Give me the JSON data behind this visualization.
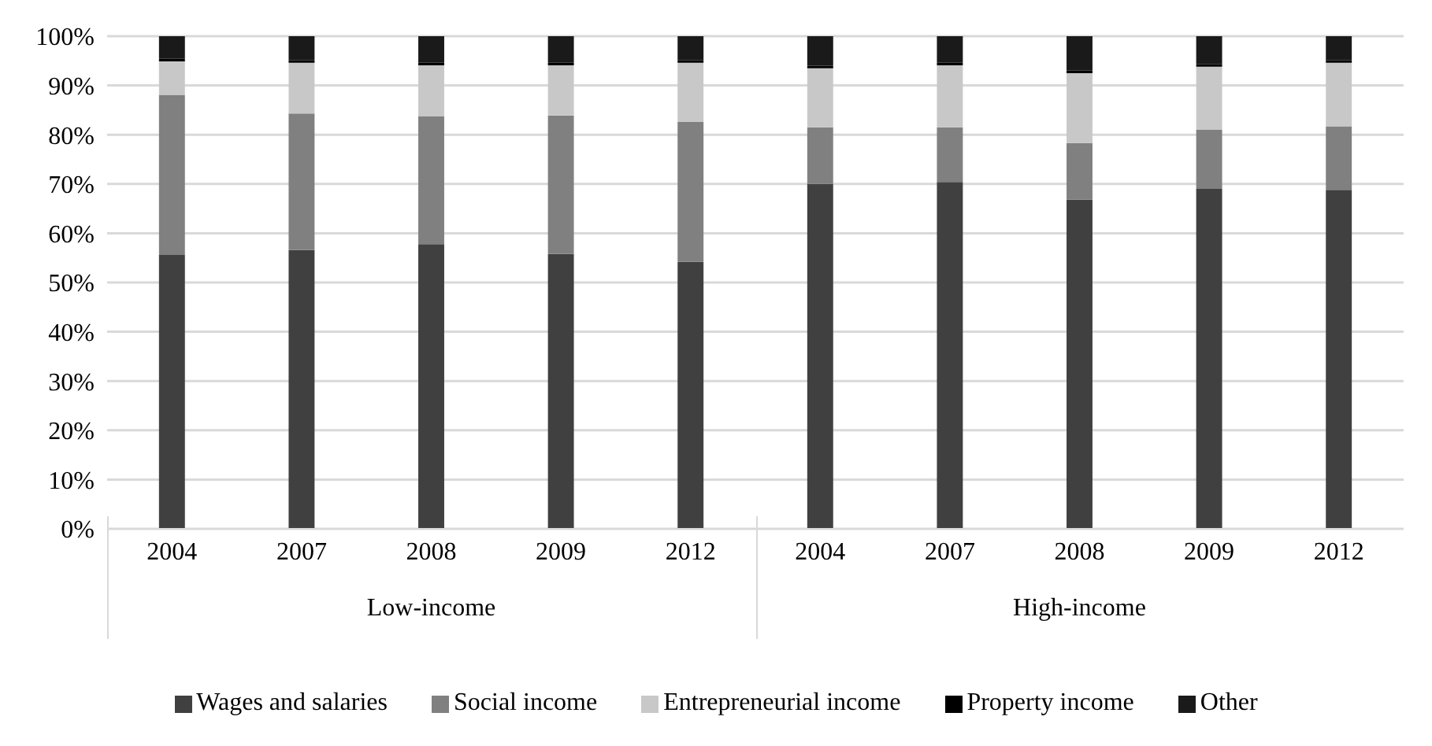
{
  "chart_data": {
    "type": "bar",
    "stacked": true,
    "categories": [
      "2004",
      "2007",
      "2008",
      "2009",
      "2012",
      "2004",
      "2007",
      "2008",
      "2009",
      "2012"
    ],
    "series": [
      {
        "name": "Wages and salaries",
        "color": "#404040",
        "values": [
          55.6,
          56.6,
          57.8,
          55.8,
          54.2,
          70.0,
          70.4,
          66.8,
          69.0,
          68.8
        ]
      },
      {
        "name": "Social income",
        "color": "#808080",
        "values": [
          32.5,
          27.7,
          25.9,
          28.1,
          28.4,
          11.5,
          11.1,
          11.5,
          12.0,
          12.9
        ]
      },
      {
        "name": "Entrepreneurial income",
        "color": "#c8c8c8",
        "values": [
          6.8,
          10.3,
          10.4,
          10.2,
          12.0,
          12.0,
          12.6,
          14.2,
          12.8,
          12.9
        ]
      },
      {
        "name": "Property income",
        "color": "#000000",
        "values": [
          0.5,
          0.5,
          0.5,
          0.5,
          0.5,
          0.5,
          0.5,
          0.5,
          0.5,
          0.5
        ]
      },
      {
        "name": "Other",
        "color": "#1a1a1a",
        "values": [
          4.6,
          4.9,
          5.4,
          5.4,
          4.9,
          6.0,
          5.4,
          7.0,
          5.7,
          4.9
        ]
      }
    ],
    "ylim": [
      0,
      100
    ],
    "yticks": [
      {
        "value": 0,
        "label": "0%"
      },
      {
        "value": 10,
        "label": "10%"
      },
      {
        "value": 20,
        "label": "20%"
      },
      {
        "value": 30,
        "label": "30%"
      },
      {
        "value": 40,
        "label": "40%"
      },
      {
        "value": 50,
        "label": "50%"
      },
      {
        "value": 60,
        "label": "60%"
      },
      {
        "value": 70,
        "label": "70%"
      },
      {
        "value": 80,
        "label": "80%"
      },
      {
        "value": 90,
        "label": "90%"
      },
      {
        "value": 100,
        "label": "100%"
      }
    ],
    "grid": "y",
    "legend": "bottom",
    "annotations": [
      "Low-income",
      "High-income"
    ]
  }
}
